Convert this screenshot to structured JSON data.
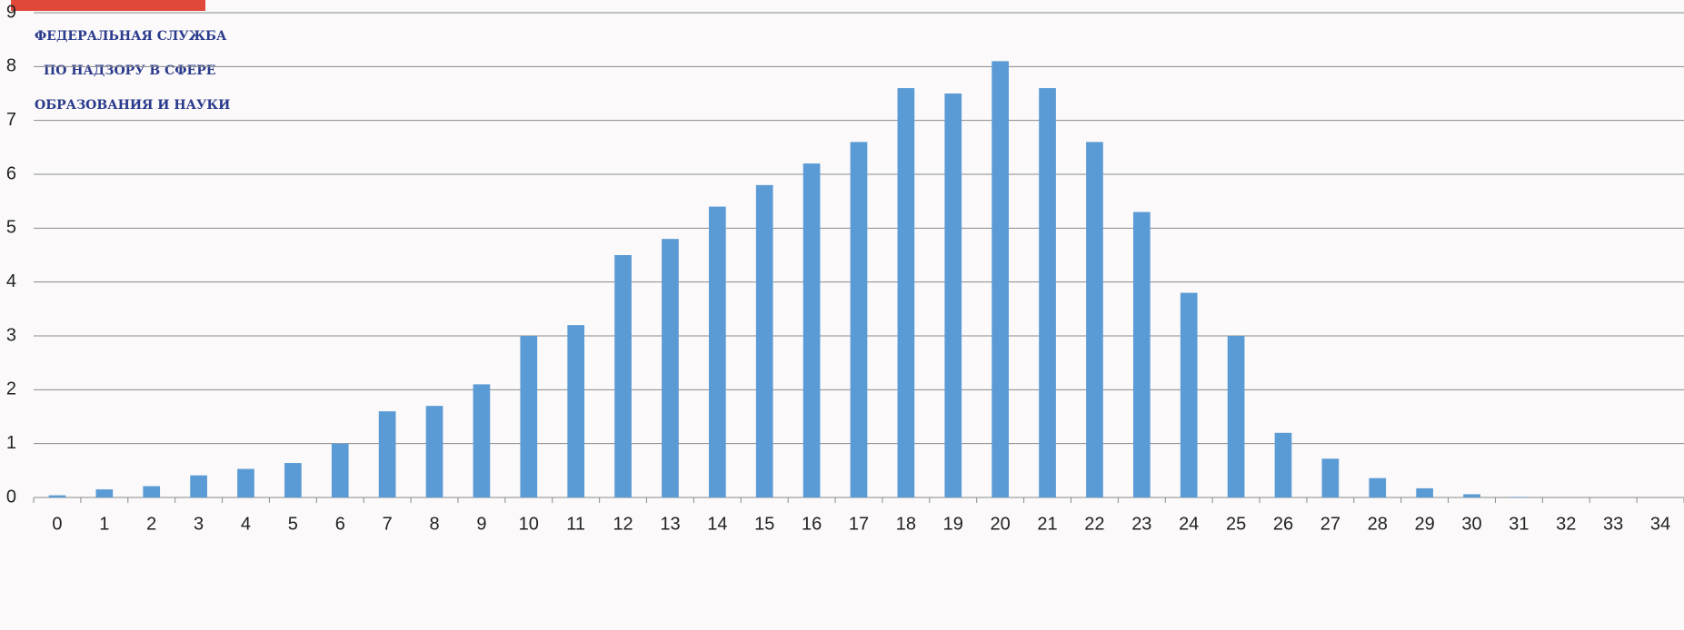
{
  "logo": {
    "lines": [
      "ФЕДЕРАЛЬНАЯ СЛУЖБА",
      "ПО НАДЗОРУ В СФЕРЕ",
      "ОБРАЗОВАНИЯ И НАУКИ"
    ]
  },
  "chart_data": {
    "type": "bar",
    "categories": [
      "0",
      "1",
      "2",
      "3",
      "4",
      "5",
      "6",
      "7",
      "8",
      "9",
      "10",
      "11",
      "12",
      "13",
      "14",
      "15",
      "16",
      "17",
      "18",
      "19",
      "20",
      "21",
      "22",
      "23",
      "24",
      "25",
      "26",
      "27",
      "28",
      "29",
      "30",
      "31",
      "32",
      "33",
      "34"
    ],
    "values": [
      0.04,
      0.15,
      0.21,
      0.41,
      0.53,
      0.64,
      1.0,
      1.6,
      1.7,
      2.1,
      3.0,
      3.2,
      4.5,
      4.8,
      5.4,
      5.8,
      6.2,
      6.6,
      7.6,
      7.5,
      8.1,
      7.6,
      6.6,
      5.3,
      3.8,
      3.0,
      1.2,
      0.72,
      0.36,
      0.17,
      0.06,
      0.01,
      0,
      0,
      0
    ],
    "color": "#5b9bd5",
    "ylim": [
      0,
      9
    ],
    "yticks": [
      0,
      1,
      2,
      3,
      4,
      5,
      6,
      7,
      8,
      9
    ],
    "grid": true
  }
}
